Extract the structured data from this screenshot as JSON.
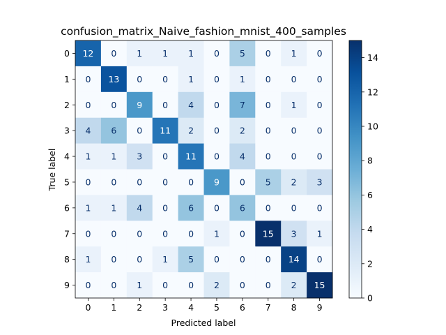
{
  "chart_data": {
    "type": "heatmap",
    "title": "confusion_matrix_Naive_fashion_mnist_400_samples",
    "xlabel": "Predicted label",
    "ylabel": "True label",
    "x_categories": [
      "0",
      "1",
      "2",
      "3",
      "4",
      "5",
      "6",
      "7",
      "8",
      "9"
    ],
    "y_categories": [
      "0",
      "1",
      "2",
      "3",
      "4",
      "5",
      "6",
      "7",
      "8",
      "9"
    ],
    "values": [
      [
        12,
        0,
        1,
        1,
        1,
        0,
        5,
        0,
        1,
        0
      ],
      [
        0,
        13,
        0,
        0,
        1,
        0,
        1,
        0,
        0,
        0
      ],
      [
        0,
        0,
        9,
        0,
        4,
        0,
        7,
        0,
        1,
        0
      ],
      [
        4,
        6,
        0,
        11,
        2,
        0,
        2,
        0,
        0,
        0
      ],
      [
        1,
        1,
        3,
        0,
        11,
        0,
        4,
        0,
        0,
        0
      ],
      [
        0,
        0,
        0,
        0,
        0,
        9,
        0,
        5,
        2,
        3
      ],
      [
        1,
        1,
        4,
        0,
        6,
        0,
        6,
        0,
        0,
        0
      ],
      [
        0,
        0,
        0,
        0,
        0,
        1,
        0,
        15,
        3,
        1
      ],
      [
        1,
        0,
        0,
        1,
        5,
        0,
        0,
        0,
        14,
        0
      ],
      [
        0,
        0,
        1,
        0,
        0,
        2,
        0,
        0,
        2,
        15
      ]
    ],
    "colormap": "Blues",
    "vmin": 0,
    "vmax": 15,
    "colorbar_ticks": [
      0,
      2,
      4,
      6,
      8,
      10,
      12,
      14
    ]
  }
}
